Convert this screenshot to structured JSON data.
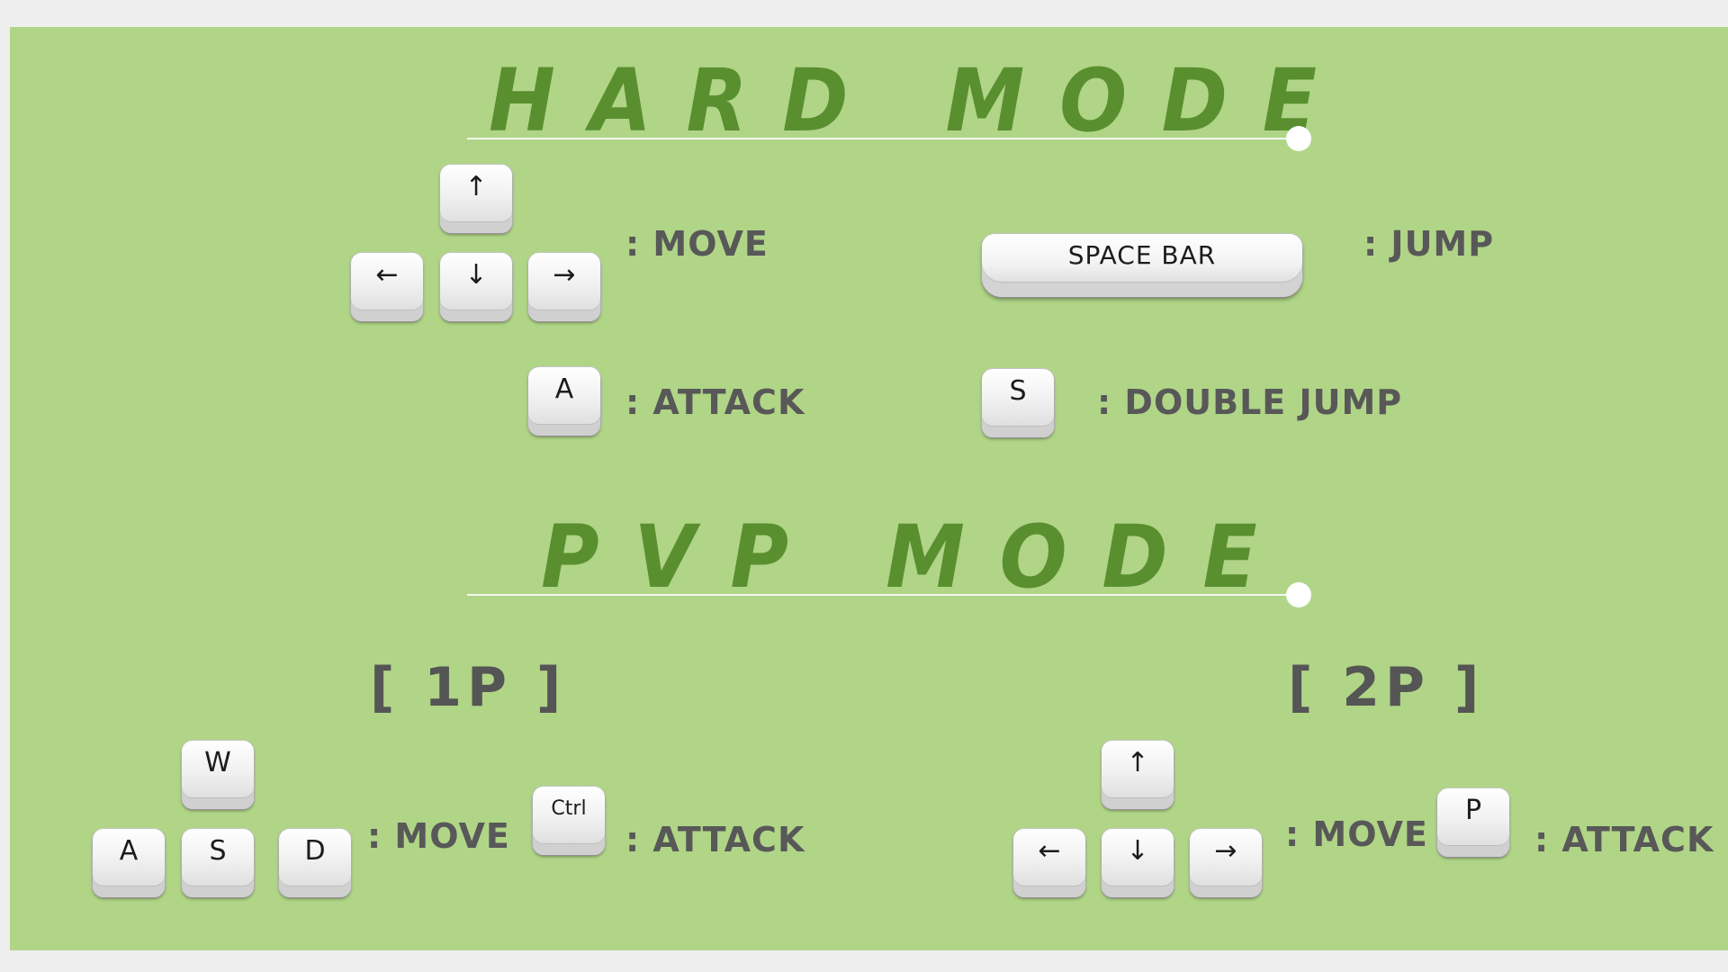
{
  "hard_mode": {
    "title": "HARD MODE",
    "move_keys": {
      "up": "↑",
      "left": "←",
      "down": "↓",
      "right": "→"
    },
    "move_label": ": MOVE",
    "jump_key": "SPACE BAR",
    "jump_label": ": JUMP",
    "attack_key": "A",
    "attack_label": ": ATTACK",
    "double_jump_key": "S",
    "double_jump_label": ": DOUBLE JUMP"
  },
  "pvp_mode": {
    "title": "PVP MODE",
    "player1": {
      "label": "[ 1P ]",
      "move_keys": {
        "up": "W",
        "left": "A",
        "down": "S",
        "right": "D"
      },
      "move_label": ": MOVE",
      "attack_key": "Ctrl",
      "attack_label": ": ATTACK"
    },
    "player2": {
      "label": "[ 2P ]",
      "move_keys": {
        "up": "↑",
        "left": "←",
        "down": "↓",
        "right": "→"
      },
      "move_label": ": MOVE",
      "attack_key": "P",
      "attack_label": ": ATTACK"
    }
  },
  "colors": {
    "panel_background": "#b0d587",
    "title": "#5a8f2f",
    "text": "#585858",
    "page_background": "#eeeeee"
  }
}
